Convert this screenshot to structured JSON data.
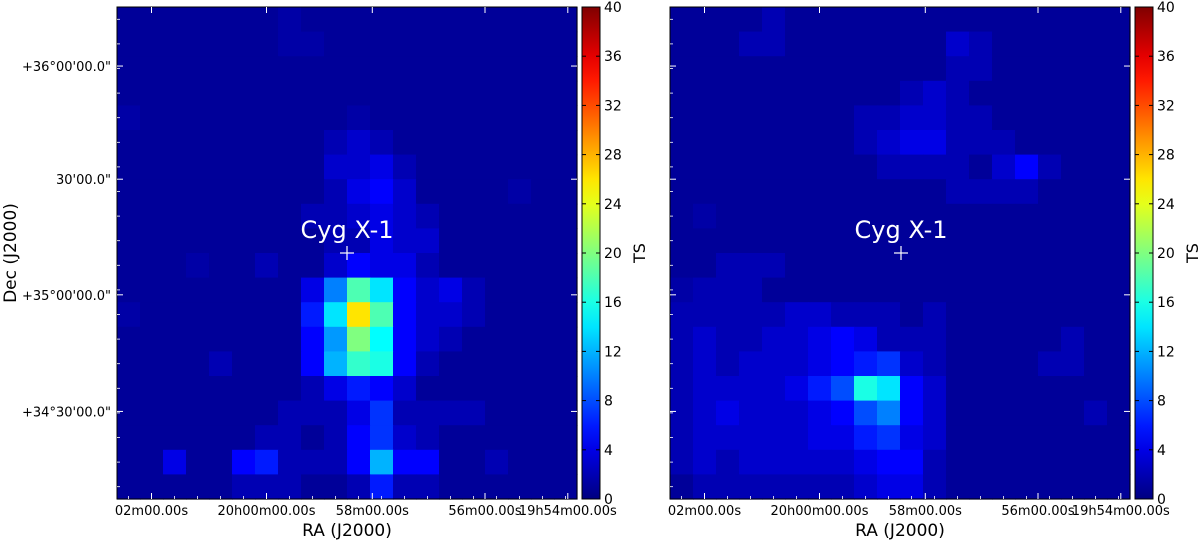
{
  "chart_data": [
    {
      "type": "heatmap",
      "panel": "left",
      "xlabel": "RA (J2000)",
      "ylabel": "Dec (J2000)",
      "x_ticks": [
        "02m00.00s",
        "20h00m00.00s",
        "58m00.00s",
        "56m00.00s",
        "19h54m00.00s"
      ],
      "y_ticks": [
        "+36°00'00.0\"",
        "30'00.0\"",
        "+35°00'00.0\"",
        "+34°30'00.0\""
      ],
      "colorbar": {
        "label": "TS",
        "min": 0,
        "max": 40,
        "ticks": [
          "0",
          "4",
          "8",
          "12",
          "16",
          "20",
          "24",
          "28",
          "32",
          "36",
          "40"
        ],
        "colormap": "jet"
      },
      "source_label": "Cyg X-1",
      "grid_size": [
        20,
        20
      ],
      "values": [
        [
          1,
          1,
          1,
          1,
          1,
          1,
          1,
          1.5,
          1,
          1,
          1,
          1,
          1,
          1,
          1,
          1,
          1,
          1,
          1,
          1
        ],
        [
          1,
          1,
          1,
          1,
          1,
          1,
          1,
          1.5,
          1.5,
          1,
          1,
          1,
          1,
          1,
          1,
          1,
          1,
          1,
          1,
          1
        ],
        [
          1,
          1,
          1,
          1,
          1,
          1,
          1,
          1,
          1,
          1,
          1,
          1,
          1,
          1,
          1,
          1,
          1,
          1,
          1,
          1
        ],
        [
          1,
          1,
          1,
          1,
          1,
          1,
          1,
          1,
          1,
          1,
          1,
          1,
          1,
          1,
          1,
          1,
          1,
          1,
          1,
          1
        ],
        [
          1.5,
          1,
          1,
          1,
          1,
          1,
          1,
          1,
          1,
          1,
          1.5,
          1,
          1,
          1,
          1,
          1,
          1,
          1,
          1,
          1
        ],
        [
          1,
          1,
          1,
          1,
          1,
          1,
          1,
          1,
          1,
          2,
          3,
          2,
          1,
          1,
          1,
          1,
          1,
          1,
          1,
          1
        ],
        [
          1,
          1,
          1,
          1,
          1,
          1,
          1,
          1,
          1,
          3,
          3,
          4,
          2,
          1,
          1,
          1,
          1,
          1,
          1,
          1
        ],
        [
          1,
          1,
          1,
          1,
          1,
          1,
          1,
          1,
          1,
          2,
          4,
          5,
          3,
          1,
          1,
          1,
          1,
          1.5,
          1,
          1
        ],
        [
          1,
          1,
          1,
          1,
          1,
          1,
          1,
          1,
          2,
          2,
          3,
          4,
          3,
          2,
          1,
          1,
          1,
          1,
          1,
          1
        ],
        [
          1,
          1,
          1,
          1,
          1,
          1,
          1,
          1,
          1,
          2,
          2,
          4,
          3,
          3,
          1,
          1,
          1,
          1,
          1,
          1
        ],
        [
          1,
          1,
          1,
          1.5,
          1,
          1,
          2,
          1,
          1,
          3,
          5,
          4,
          4,
          2,
          1,
          1,
          1,
          1,
          1,
          1
        ],
        [
          1,
          1,
          1,
          1,
          1,
          1,
          1,
          1,
          4,
          10,
          18,
          14,
          5,
          3,
          4,
          2,
          1,
          1,
          1,
          1
        ],
        [
          1.5,
          1,
          1,
          1,
          1,
          1,
          1,
          1,
          6,
          14,
          26,
          18,
          5,
          3,
          3,
          2,
          1,
          1,
          1,
          1
        ],
        [
          1,
          1,
          1,
          1,
          1,
          1,
          1,
          1,
          5,
          11,
          20,
          15,
          5,
          3,
          2,
          1,
          1,
          1,
          1,
          1
        ],
        [
          1,
          1,
          1,
          1,
          2,
          1,
          1,
          1,
          5,
          12,
          17,
          16,
          5,
          2,
          1,
          1,
          1,
          1,
          1,
          1
        ],
        [
          1,
          1,
          1,
          1,
          1,
          1,
          1,
          1,
          2,
          4,
          6,
          5,
          3,
          1,
          1,
          1,
          1,
          1,
          1,
          1
        ],
        [
          1,
          1,
          1,
          1,
          1,
          1,
          1,
          2,
          2,
          2,
          4,
          7,
          2,
          2,
          2,
          2,
          1,
          1,
          1,
          1
        ],
        [
          1,
          1,
          1,
          1,
          1,
          1,
          2,
          2,
          1,
          2,
          5,
          7,
          3,
          2,
          1,
          1,
          1,
          1,
          1,
          1
        ],
        [
          1,
          1,
          4,
          1,
          1,
          5,
          6,
          2,
          2,
          2,
          5,
          12,
          5,
          5,
          1,
          1,
          2,
          1,
          1,
          1
        ],
        [
          1,
          1,
          1,
          1,
          1,
          2,
          2,
          2,
          1,
          1,
          2,
          6,
          2,
          2,
          1,
          1,
          1,
          1,
          1,
          1
        ]
      ]
    },
    {
      "type": "heatmap",
      "panel": "right",
      "xlabel": "RA (J2000)",
      "x_ticks": [
        "02m00.00s",
        "20h00m00.00s",
        "58m00.00s",
        "56m00.00s",
        "19h54m00.00s"
      ],
      "colorbar": {
        "label": "TS",
        "min": 0,
        "max": 40,
        "ticks": [
          "0",
          "4",
          "8",
          "12",
          "16",
          "20",
          "24",
          "28",
          "32",
          "36",
          "40"
        ],
        "colormap": "jet"
      },
      "source_label": "Cyg X-1",
      "grid_size": [
        20,
        20
      ],
      "values": [
        [
          1,
          1,
          1,
          1,
          2,
          1,
          1,
          1,
          1,
          1,
          1,
          1,
          1,
          1,
          1,
          1,
          1,
          1,
          1,
          1
        ],
        [
          1,
          1,
          1,
          2,
          2,
          1,
          1,
          1,
          1,
          1,
          1,
          1,
          3,
          2,
          1,
          1,
          1,
          1,
          1,
          1
        ],
        [
          1,
          1,
          1,
          1,
          1,
          1,
          1,
          1,
          1,
          1,
          1,
          1,
          2,
          2,
          1,
          1,
          1,
          1,
          1,
          1
        ],
        [
          1,
          1,
          1,
          1,
          1,
          1,
          1,
          1,
          1,
          1,
          2,
          3,
          2,
          1,
          1,
          1,
          1,
          1,
          1,
          1
        ],
        [
          1,
          1,
          1,
          1,
          1,
          1,
          1,
          1,
          2,
          2,
          3,
          3,
          2,
          2,
          1,
          1,
          1,
          1,
          1,
          1
        ],
        [
          1,
          1,
          1,
          1,
          1,
          1,
          1,
          1,
          2,
          3,
          4,
          4,
          2,
          2,
          2,
          1,
          1,
          1,
          1,
          1
        ],
        [
          1,
          1,
          1,
          1,
          1,
          1,
          1,
          1,
          1,
          2,
          2,
          2,
          2,
          1,
          3,
          5,
          2,
          1,
          1,
          1
        ],
        [
          1,
          1,
          1,
          1,
          1,
          1,
          1,
          1,
          1,
          1,
          1,
          1,
          2,
          2,
          2,
          2,
          1,
          1,
          1,
          1
        ],
        [
          1,
          1.5,
          1,
          1,
          1,
          1,
          1,
          1,
          1,
          1,
          1,
          1,
          1,
          1,
          1,
          1,
          1,
          1,
          1,
          1
        ],
        [
          1,
          1,
          1,
          1,
          1,
          1,
          1,
          1,
          1,
          1,
          1,
          1,
          1,
          1,
          1,
          1,
          1,
          1,
          1,
          1
        ],
        [
          1,
          1,
          2,
          2,
          2,
          1,
          1,
          1,
          1,
          1,
          1,
          1,
          1,
          1,
          1,
          1,
          1,
          1,
          1,
          1
        ],
        [
          1.5,
          2,
          2,
          2,
          1,
          1,
          1,
          1,
          1,
          1,
          1,
          1,
          1,
          1,
          1,
          1,
          1,
          1,
          1,
          1
        ],
        [
          2,
          2,
          2,
          2,
          2,
          3,
          3,
          2,
          2,
          2,
          1,
          2,
          1,
          1,
          1,
          1,
          1,
          1,
          1,
          1
        ],
        [
          2,
          3,
          2,
          2,
          3,
          3,
          4,
          5,
          4,
          2,
          2,
          2,
          1,
          1,
          1,
          1,
          1,
          2,
          1,
          1
        ],
        [
          2,
          3,
          2,
          3,
          3,
          3,
          4,
          5,
          6,
          7,
          3,
          2,
          1,
          1,
          1,
          1,
          2,
          2,
          1,
          1
        ],
        [
          2,
          3,
          3,
          3,
          3,
          4,
          6,
          8,
          16,
          14,
          5,
          3,
          1,
          1,
          1,
          1,
          1,
          1,
          1,
          1
        ],
        [
          2,
          3,
          4,
          3,
          3,
          3,
          4,
          5,
          8,
          10,
          5,
          3,
          1,
          1,
          1,
          1,
          1,
          1,
          2,
          1
        ],
        [
          2,
          3,
          3,
          3,
          3,
          3,
          4,
          4,
          6,
          7,
          4,
          3,
          1,
          1,
          1,
          1,
          1,
          1,
          1,
          1
        ],
        [
          2,
          3,
          2,
          3,
          3,
          3,
          3,
          3,
          4,
          5,
          5,
          2,
          1,
          1,
          1,
          1,
          1,
          1,
          1,
          1
        ],
        [
          1,
          2,
          2,
          2,
          2,
          2,
          2,
          2,
          3,
          4,
          4,
          2,
          1,
          1,
          1,
          1,
          1,
          1,
          1,
          1
        ]
      ]
    }
  ]
}
